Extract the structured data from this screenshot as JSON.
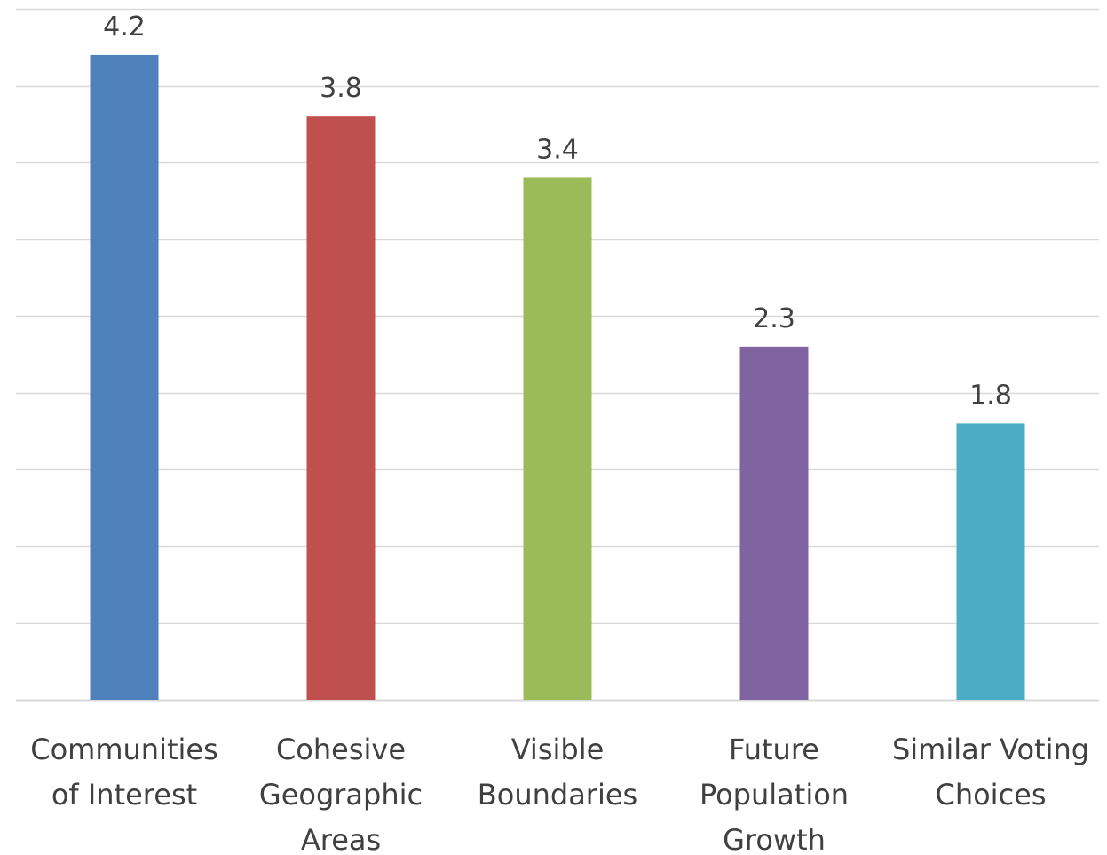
{
  "chart_data": {
    "type": "bar",
    "title": "",
    "xlabel": "",
    "ylabel": "",
    "categories": [
      [
        "Communities",
        "of Interest"
      ],
      [
        "Cohesive",
        "Geographic",
        "Areas"
      ],
      [
        "Visible",
        "Boundaries"
      ],
      [
        "Future",
        "Population",
        "Growth"
      ],
      [
        "Similar Voting",
        "Choices"
      ]
    ],
    "values": [
      4.2,
      3.8,
      3.4,
      2.3,
      1.8
    ],
    "value_labels": [
      "4.2",
      "3.8",
      "3.4",
      "2.3",
      "1.8"
    ],
    "colors": [
      "#4f81bd",
      "#c0504d",
      "#9bbb59",
      "#8064a2",
      "#4bacc6"
    ],
    "ylim": [
      0,
      4.5
    ],
    "grid_step": 0.5,
    "grid": true,
    "legend": "none"
  }
}
